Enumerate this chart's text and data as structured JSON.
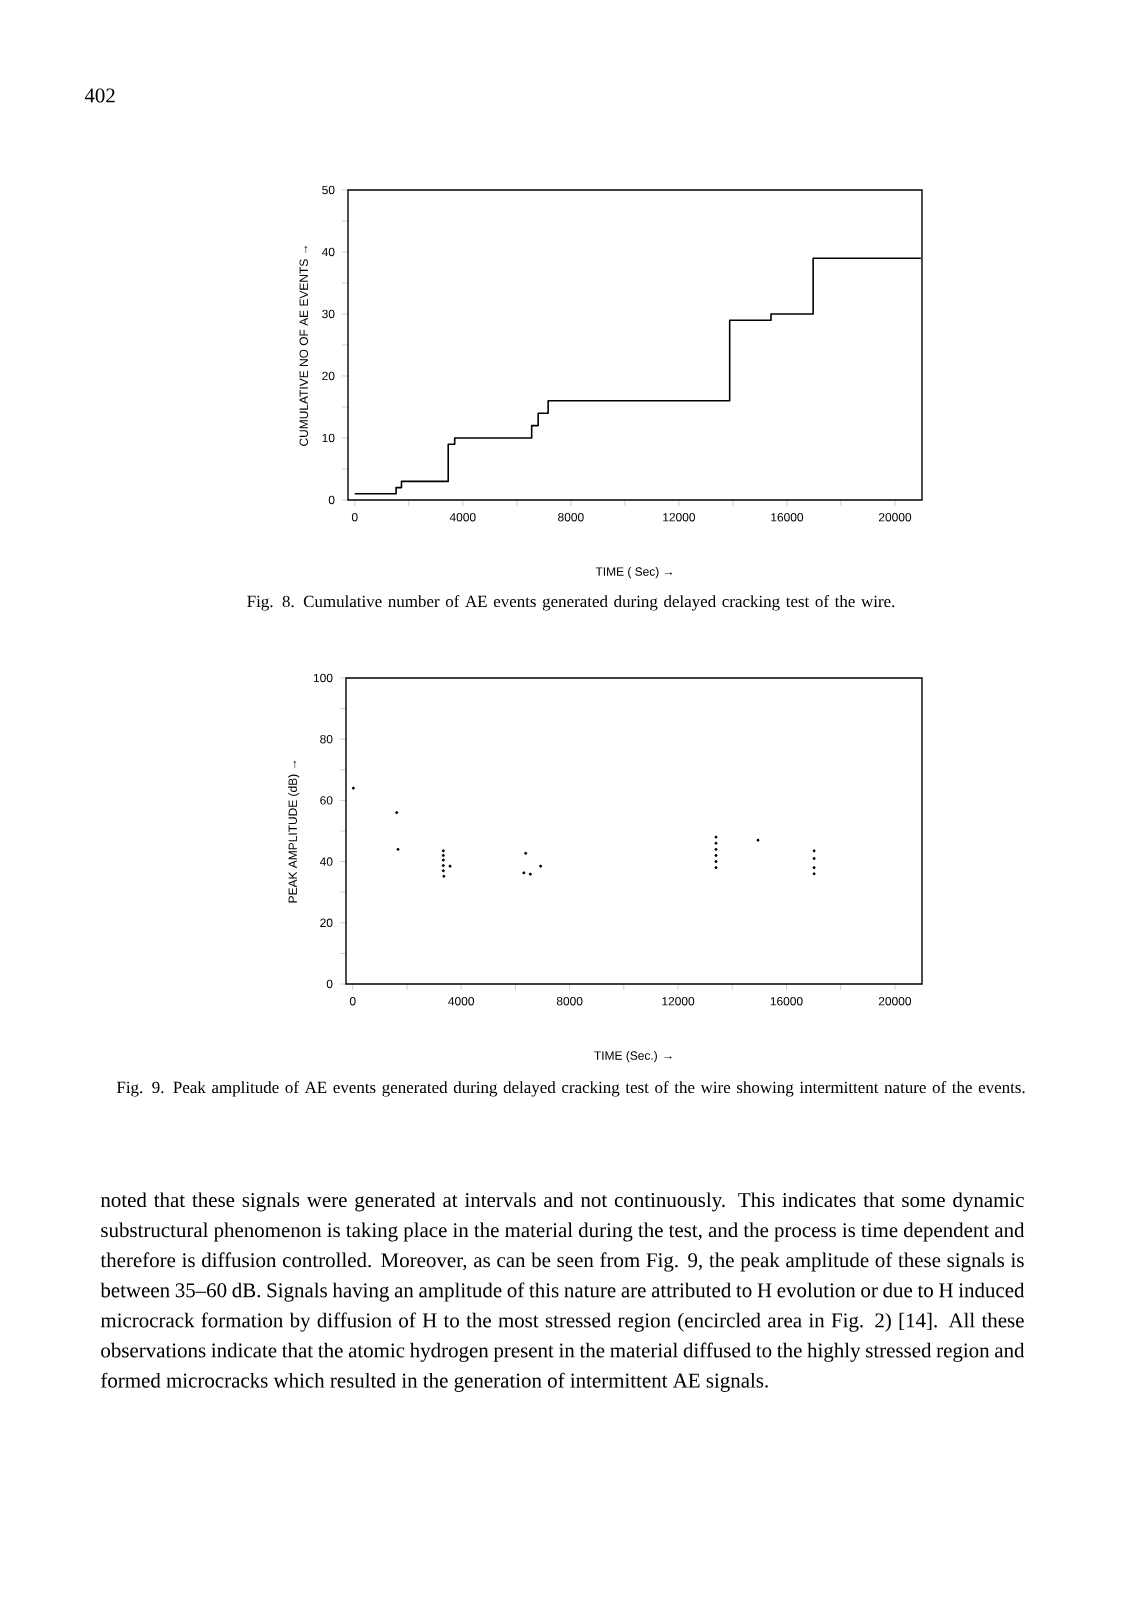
{
  "chart_data": [
    {
      "type": "step",
      "title": "Fig. 8. Cumulative number of AE events generated during delayed cracking test of the wire.",
      "xlabel": "TIME ( Sec) →",
      "ylabel": "CUMULATIVE NO OF AE EVENTS →",
      "annotations": [
        "402"
      ],
      "x": [
        0,
        1530,
        1730,
        3460,
        3700,
        6550,
        6790,
        7160,
        13880,
        15410,
        16970,
        20960
      ],
      "values": [
        1,
        2,
        3,
        9,
        10,
        12,
        14,
        16,
        29,
        30,
        39,
        39
      ],
      "color": "#000000",
      "marker": "none",
      "xlim": [
        -250,
        21000
      ],
      "ylim": [
        0,
        50
      ],
      "xticks": [
        0,
        {
          "value": 2000,
          "label": null
        },
        4000,
        {
          "value": 6000,
          "label": null
        },
        8000,
        {
          "value": 10000,
          "label": null
        },
        12000,
        {
          "value": 14000,
          "label": null
        },
        16000,
        {
          "value": 18000,
          "label": null
        },
        20000
      ],
      "yticks": [
        0,
        {
          "value": 5,
          "label": null
        },
        10,
        {
          "value": 15,
          "label": null
        },
        20,
        {
          "value": 25,
          "label": null
        },
        30,
        {
          "value": 35,
          "label": null
        },
        40,
        {
          "value": 45,
          "label": null
        },
        50
      ]
    },
    {
      "type": "scatter",
      "title": "Fig. 9. Peak amplitude of AE events generated during delayed cracking test of the wire showing intermittent nature of the events.",
      "xlabel": "TIME (Sec.) →",
      "ylabel": "PEAK AMPLITUDE (dB) →",
      "annotations": [
        "noted that these signals were generated at intervals and not continuously. This indicates that some dynamic substructural phenomenon is taking place in the material during the test, and the process is time dependent and therefore is diffusion controlled. Moreover, as can be seen from Fig. 9, the peak amplitude of these signals is between 35–60 dB. Signals having an amplitude of this nature are attributed to H evolution or due to H induced microcrack formation by diffusion of H to the most stressed region (encircled area in Fig. 2) [14]. All these observations indicate that the atomic hydrogen present in the material diffused to the highly stressed region and formed microcracks which resulted in the generation of intermittent AE signals."
      ],
      "x": [
        20,
        1620,
        1670,
        3340,
        3340,
        3340,
        3340,
        3340,
        3360,
        3590,
        6380,
        6310,
        6550,
        6930,
        13400,
        13400,
        13400,
        13400,
        13400,
        13400,
        14950,
        17020,
        17020,
        17020,
        17020
      ],
      "values": [
        64,
        56,
        44,
        43.5,
        42,
        40.5,
        38.7,
        37,
        35.2,
        38.5,
        42.7,
        36.3,
        35.9,
        38.5,
        48,
        46,
        44,
        42,
        40,
        38,
        47,
        43.5,
        41,
        38,
        36
      ],
      "color": "#000000",
      "marker": "circle",
      "xlim": [
        -250,
        21000
      ],
      "ylim": [
        0,
        100
      ],
      "xticks": [
        0,
        {
          "value": 2000,
          "label": null
        },
        4000,
        {
          "value": 6000,
          "label": null
        },
        8000,
        {
          "value": 10000,
          "label": null
        },
        12000,
        {
          "value": 14000,
          "label": null
        },
        16000,
        {
          "value": 18000,
          "label": null
        },
        20000
      ],
      "yticks": [
        0,
        {
          "value": 10,
          "label": null
        },
        20,
        {
          "value": 30,
          "label": null
        },
        40,
        {
          "value": 50,
          "label": null
        },
        60,
        {
          "value": 70,
          "label": null
        },
        80,
        {
          "value": 90,
          "label": null
        },
        100
      ]
    }
  ]
}
